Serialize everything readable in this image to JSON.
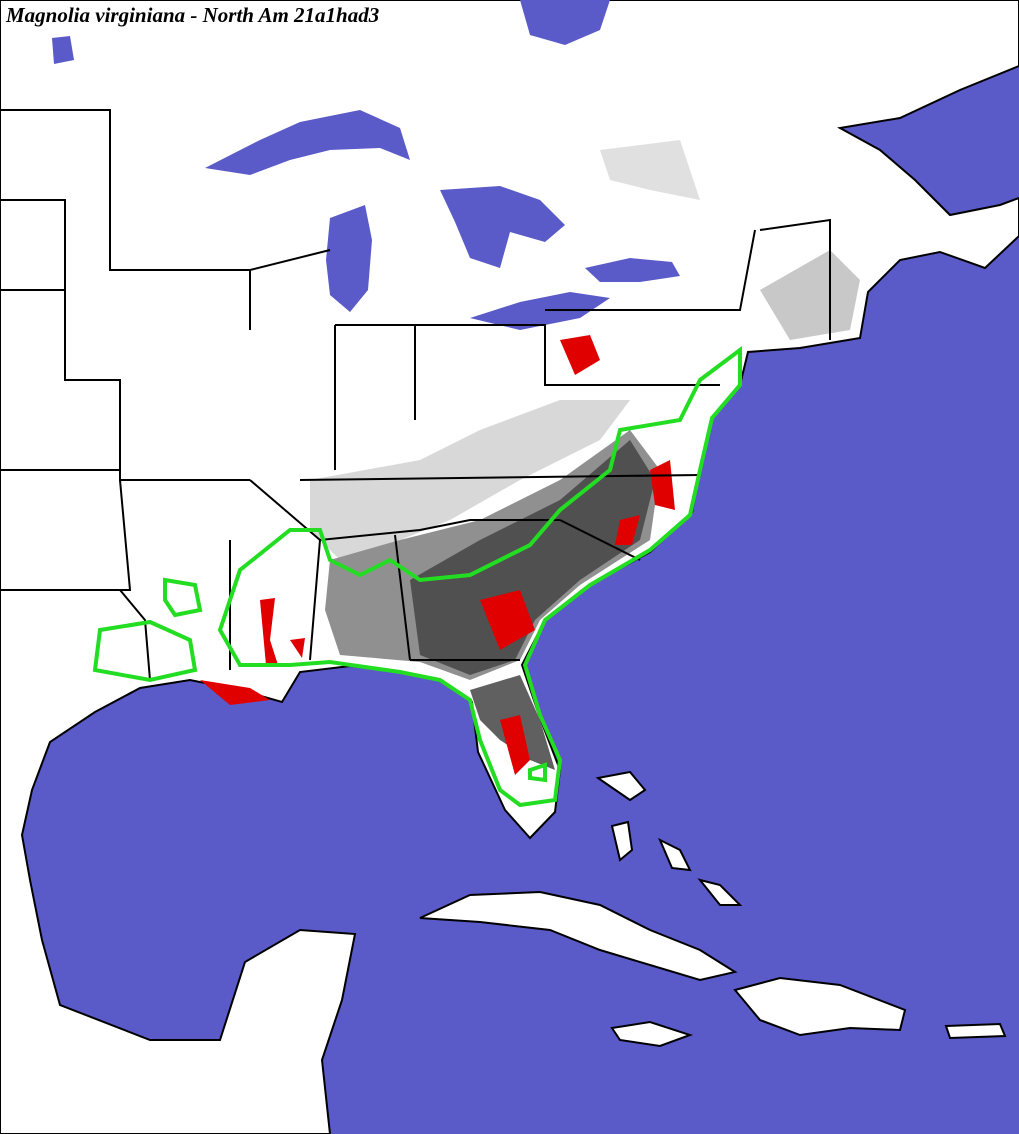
{
  "title": "Magnolia virginiana - North Am 21a1had3"
}
